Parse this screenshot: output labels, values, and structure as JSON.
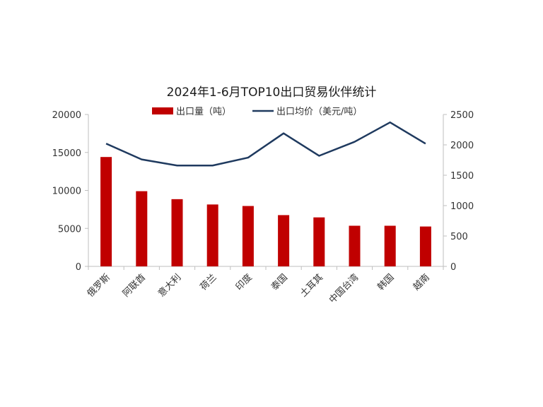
{
  "chart_data": {
    "type": "bar",
    "title": "2024年1-6月TOP10出口贸易伙伴统计",
    "categories": [
      "俄罗斯",
      "阿联酋",
      "意大利",
      "荷兰",
      "印度",
      "泰国",
      "土耳其",
      "中国台湾",
      "韩国",
      "越南"
    ],
    "series": [
      {
        "name": "出口量（吨）",
        "type": "bar",
        "axis": "left",
        "color": "#c00000",
        "values": [
          14400,
          9900,
          8850,
          8150,
          7950,
          6750,
          6450,
          5350,
          5350,
          5250
        ]
      },
      {
        "name": "出口均价（美元/吨）",
        "type": "line",
        "axis": "right",
        "color": "#1f3a5f",
        "values": [
          2020,
          1760,
          1660,
          1660,
          1790,
          2190,
          1820,
          2050,
          2370,
          2020
        ]
      }
    ],
    "y_left": {
      "min": 0,
      "max": 20000,
      "ticks": [
        0,
        5000,
        10000,
        15000,
        20000
      ]
    },
    "y_right": {
      "min": 0,
      "max": 2500,
      "ticks": [
        0,
        500,
        1000,
        1500,
        2000,
        2500
      ]
    },
    "legend_position": "top-center",
    "grid": false
  }
}
